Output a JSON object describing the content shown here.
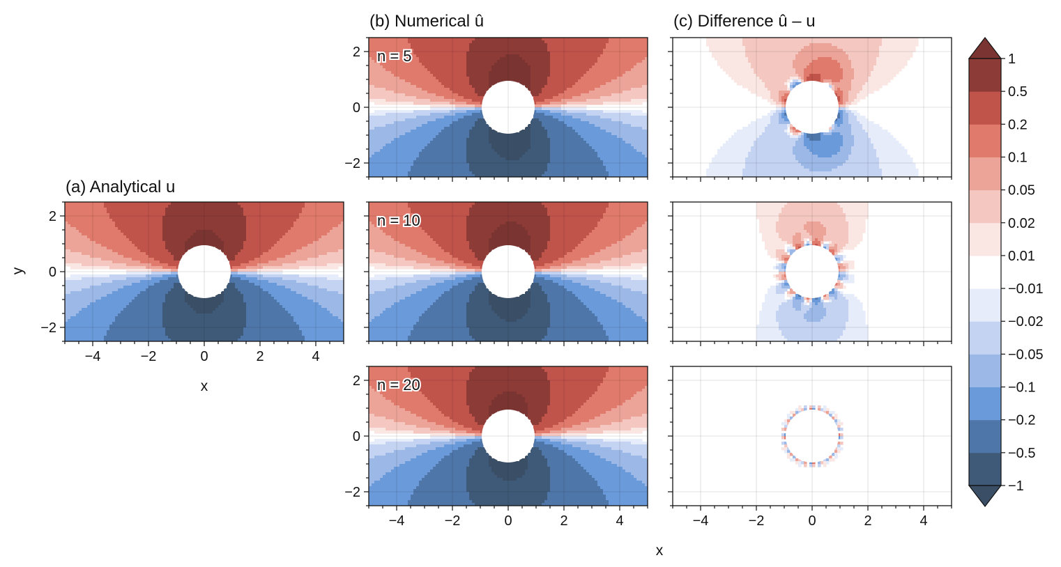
{
  "chart_data": {
    "type": "heatmap",
    "description_text": {
      "panel_a_title": "(a) Analytical u",
      "panel_b_title": "(b) Numerical û",
      "panel_c_title": "(c) Difference û – u",
      "xlabel": "x",
      "ylabel": "y",
      "row_labels": [
        "n = 5",
        "n = 10",
        "n = 20"
      ]
    },
    "axes": {
      "xlim": [
        -5,
        5
      ],
      "ylim": [
        -2.5,
        2.5
      ],
      "xticks": [
        -4,
        -2,
        0,
        2,
        4
      ],
      "xtick_labels": [
        "−4",
        "−2",
        "0",
        "2",
        "4"
      ],
      "yticks": [
        -2,
        0,
        2
      ],
      "ytick_labels": [
        "−2",
        "0",
        "2"
      ],
      "grid": true,
      "cylinder_radius": 0.95
    },
    "colorbar": {
      "levels": [
        -1,
        -0.5,
        -0.2,
        -0.1,
        -0.05,
        -0.02,
        -0.01,
        0.01,
        0.02,
        0.05,
        0.1,
        0.2,
        0.5,
        1
      ],
      "tick_labels": [
        "−1",
        "−0.5",
        "−0.2",
        "−0.1",
        "−0.05",
        "−0.02",
        "−0.01",
        "0.01",
        "0.02",
        "0.05",
        "0.1",
        "0.2",
        "0.5",
        "1"
      ],
      "colors": [
        "#3f5a78",
        "#4f76a8",
        "#6a9ad9",
        "#9cb8e6",
        "#c4d3f2",
        "#e6ecfa",
        "#ffffff",
        "#fae7e4",
        "#f4c8c1",
        "#eca398",
        "#e07a6c",
        "#c0534a",
        "#8c3b37"
      ],
      "extend_low_color": "#3a4f66",
      "extend_high_color": "#7a3532"
    },
    "panels": [
      {
        "id": "a",
        "field": "analytical",
        "row": 1
      },
      {
        "id": "b1",
        "field": "numerical",
        "n": 5,
        "row": 0
      },
      {
        "id": "b2",
        "field": "numerical",
        "n": 10,
        "row": 1
      },
      {
        "id": "b3",
        "field": "numerical",
        "n": 20,
        "row": 2
      },
      {
        "id": "c1",
        "field": "difference",
        "n": 5,
        "row": 0
      },
      {
        "id": "c2",
        "field": "difference",
        "n": 10,
        "row": 1
      },
      {
        "id": "c3",
        "field": "difference",
        "n": 20,
        "row": 2
      }
    ]
  }
}
